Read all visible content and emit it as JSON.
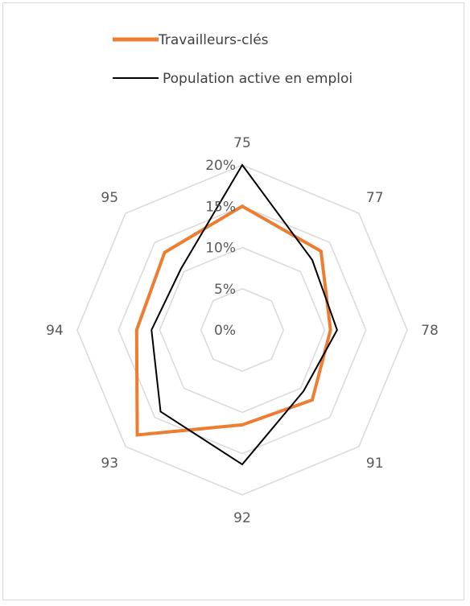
{
  "chart_data": {
    "type": "radar",
    "categories": [
      "75",
      "77",
      "78",
      "91",
      "92",
      "93",
      "94",
      "95"
    ],
    "ticks": [
      "0%",
      "5%",
      "10%",
      "15%",
      "20%"
    ],
    "rlim": [
      0,
      0.2
    ],
    "grid": true,
    "legend_position": "top",
    "series": [
      {
        "name": "Travailleurs-clés",
        "color": "#ED7D31",
        "values": [
          0.15,
          0.135,
          0.107,
          0.12,
          0.115,
          0.18,
          0.128,
          0.133
        ]
      },
      {
        "name": "Population active en emploi",
        "color": "#000000",
        "values": [
          0.2,
          0.12,
          0.115,
          0.105,
          0.163,
          0.14,
          0.11,
          0.105
        ]
      }
    ]
  }
}
